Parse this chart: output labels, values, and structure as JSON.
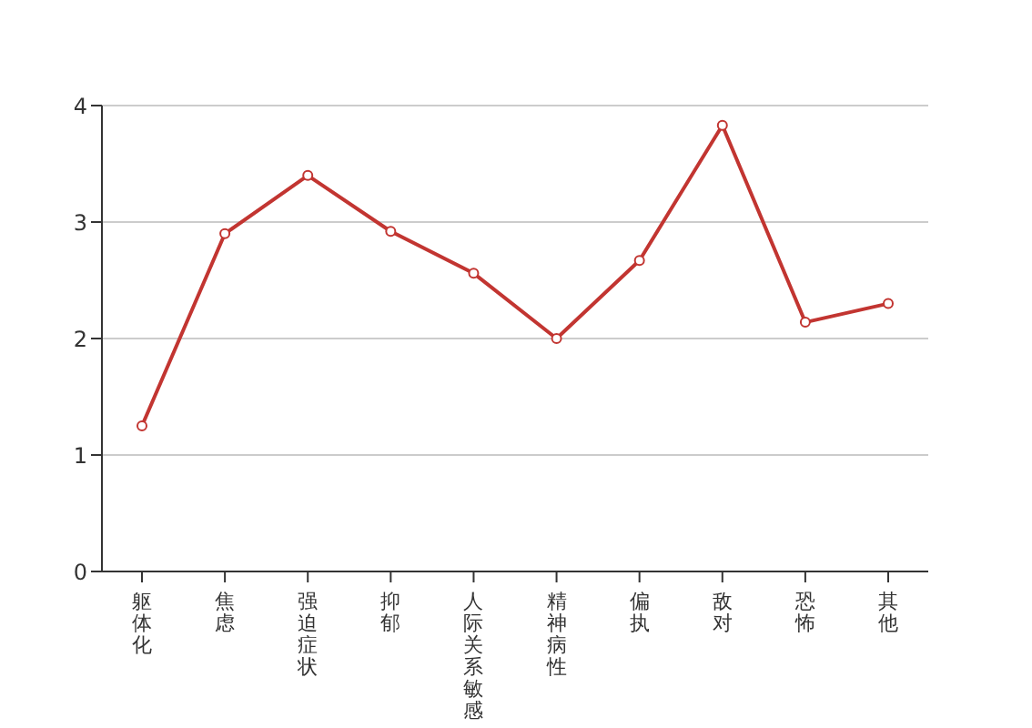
{
  "chart_data": {
    "type": "line",
    "categories": [
      "躯体化",
      "焦虑",
      "强迫症状",
      "抑郁",
      "人际关系敏感",
      "精神病性",
      "偏执",
      "敌对",
      "恐怖",
      "其他"
    ],
    "series": [
      {
        "color": "#c23531",
        "values": [
          1.25,
          2.9,
          3.4,
          2.92,
          2.56,
          2.0,
          2.67,
          3.83,
          2.14,
          2.3
        ]
      }
    ],
    "ylim": [
      0,
      4
    ],
    "yticks": [
      0,
      1,
      2,
      3,
      4
    ],
    "grid": "y",
    "marker": "circle",
    "line_style": "solid"
  }
}
